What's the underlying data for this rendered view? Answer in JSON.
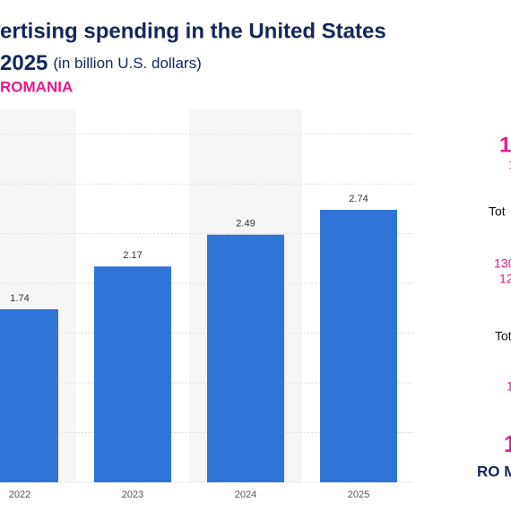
{
  "chart_data": {
    "type": "bar",
    "title": "ertising spending in the United States",
    "subtitle_year": "2025",
    "subtitle": "(in billion U.S. dollars)",
    "source": "ROMANIA",
    "categories": [
      "2022",
      "2023",
      "2024",
      "2025"
    ],
    "values": [
      1.74,
      2.17,
      2.49,
      2.74
    ],
    "color": "#2f74d6",
    "ylim": [
      0,
      3.75
    ],
    "yticks": [
      0,
      0.5,
      1,
      1.5,
      2,
      2.5,
      3,
      3.5
    ],
    "grid": true,
    "tick_labels": false
  },
  "sidebar": [
    "1",
    "1",
    "Tot",
    "130",
    "12",
    "Tot",
    "1",
    "1",
    "RO M"
  ]
}
